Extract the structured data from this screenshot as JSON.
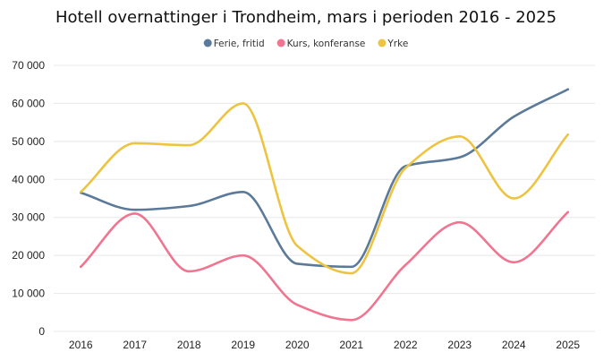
{
  "chart_data": {
    "type": "line",
    "title": "Hotell overnattinger i Trondheim, mars i perioden 2016 - 2025",
    "xlabel": "",
    "ylabel": "",
    "categories": [
      "2016",
      "2017",
      "2018",
      "2019",
      "2020",
      "2021",
      "2022",
      "2023",
      "2024",
      "2025"
    ],
    "ylim": [
      0,
      70000
    ],
    "yticks": [
      0,
      10000,
      20000,
      30000,
      40000,
      50000,
      60000,
      70000
    ],
    "ytick_labels": [
      "0",
      "10 000",
      "20 000",
      "30 000",
      "40 000",
      "50 000",
      "60 000",
      "70 000"
    ],
    "grid": true,
    "legend_position": "top-center",
    "series": [
      {
        "name": "Ferie, fritid",
        "color": "#5b7a99",
        "values": [
          36500,
          32000,
          33000,
          36700,
          17800,
          17000,
          43500,
          45800,
          56500,
          63700
        ]
      },
      {
        "name": "Kurs, konferanse",
        "color": "#f07590",
        "values": [
          17000,
          31000,
          15800,
          20000,
          7000,
          3000,
          17500,
          28700,
          18200,
          31400
        ]
      },
      {
        "name": "Yrke",
        "color": "#ecc441",
        "values": [
          36700,
          49500,
          49000,
          60000,
          22500,
          15300,
          43000,
          51300,
          35000,
          51800
        ]
      }
    ]
  }
}
